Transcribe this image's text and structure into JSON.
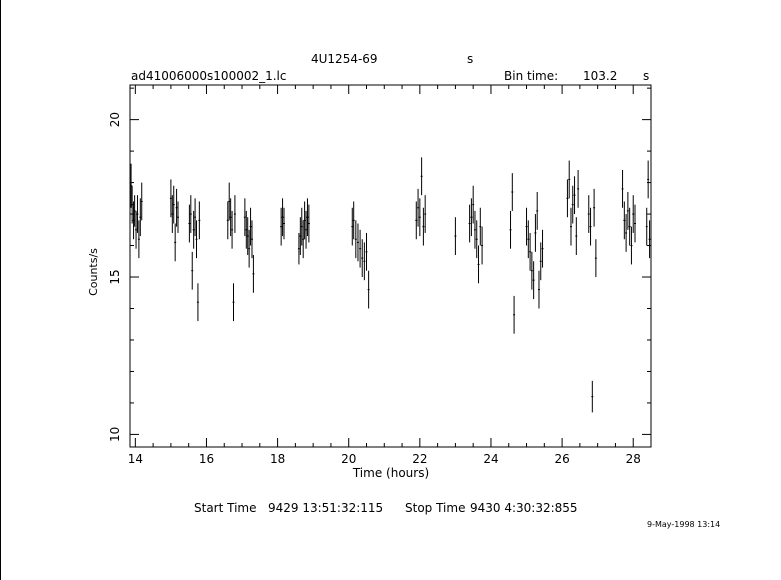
{
  "header": {
    "source": "4U1254-69",
    "source_suffix": "s",
    "file": "ad41006000s100002_1.lc",
    "bin_time_label": "Bin time:",
    "bin_time_value": "103.2",
    "bin_time_unit": "s"
  },
  "footer": {
    "start_label": "Start Time",
    "start_value": "9429  13:51:32:115",
    "stop_label": "Stop Time",
    "stop_value": "9430   4:30:32:855",
    "date_stamp": "9-May-1998 13:14"
  },
  "chart_data": {
    "type": "scatter",
    "title": "4U1254-69",
    "xlabel": "Time (hours)",
    "ylabel": "Counts/s",
    "xlim": [
      13.85,
      28.5
    ],
    "ylim": [
      9.6,
      21.1
    ],
    "xticks": [
      14,
      16,
      18,
      20,
      22,
      24,
      26,
      28
    ],
    "yticks": [
      10,
      15,
      20
    ],
    "grid": false,
    "error_bars": true,
    "points": [
      [
        13.88,
        17.9,
        0.7
      ],
      [
        13.91,
        17.3,
        0.6
      ],
      [
        13.95,
        16.8,
        0.6
      ],
      [
        13.98,
        17.1,
        0.5
      ],
      [
        14.02,
        16.5,
        0.6
      ],
      [
        14.06,
        17.0,
        0.6
      ],
      [
        14.1,
        16.2,
        0.6
      ],
      [
        14.14,
        16.9,
        0.6
      ],
      [
        14.18,
        17.4,
        0.6
      ],
      [
        15.0,
        17.5,
        0.6
      ],
      [
        15.04,
        17.0,
        0.6
      ],
      [
        15.08,
        17.3,
        0.6
      ],
      [
        15.12,
        16.1,
        0.6
      ],
      [
        15.16,
        17.2,
        0.6
      ],
      [
        15.2,
        16.9,
        0.5
      ],
      [
        15.52,
        16.7,
        0.6
      ],
      [
        15.56,
        17.0,
        0.6
      ],
      [
        15.6,
        15.2,
        0.6
      ],
      [
        15.64,
        16.5,
        0.6
      ],
      [
        15.68,
        16.9,
        0.6
      ],
      [
        15.72,
        16.2,
        0.6
      ],
      [
        15.76,
        14.2,
        0.6
      ],
      [
        15.8,
        16.8,
        0.6
      ],
      [
        16.6,
        16.8,
        0.6
      ],
      [
        16.64,
        17.4,
        0.6
      ],
      [
        16.68,
        16.9,
        0.6
      ],
      [
        16.72,
        16.5,
        0.6
      ],
      [
        16.76,
        14.2,
        0.6
      ],
      [
        16.8,
        17.0,
        0.6
      ],
      [
        17.08,
        16.9,
        0.6
      ],
      [
        17.12,
        16.5,
        0.6
      ],
      [
        17.16,
        16.3,
        0.6
      ],
      [
        17.2,
        15.9,
        0.6
      ],
      [
        17.24,
        16.6,
        0.6
      ],
      [
        17.28,
        16.2,
        0.6
      ],
      [
        17.32,
        15.1,
        0.6
      ],
      [
        18.1,
        16.6,
        0.6
      ],
      [
        18.14,
        16.9,
        0.6
      ],
      [
        18.18,
        16.7,
        0.5
      ],
      [
        18.6,
        15.9,
        0.5
      ],
      [
        18.64,
        16.3,
        0.6
      ],
      [
        18.68,
        16.6,
        0.6
      ],
      [
        18.72,
        16.2,
        0.6
      ],
      [
        18.76,
        16.8,
        0.6
      ],
      [
        18.8,
        16.5,
        0.6
      ],
      [
        18.84,
        16.9,
        0.6
      ],
      [
        18.88,
        16.7,
        0.6
      ],
      [
        20.1,
        16.6,
        0.6
      ],
      [
        20.14,
        16.8,
        0.6
      ],
      [
        20.2,
        16.2,
        0.6
      ],
      [
        20.26,
        16.1,
        0.6
      ],
      [
        20.32,
        15.9,
        0.6
      ],
      [
        20.38,
        15.6,
        0.6
      ],
      [
        20.44,
        15.5,
        0.6
      ],
      [
        20.5,
        15.8,
        0.6
      ],
      [
        20.56,
        14.6,
        0.6
      ],
      [
        21.9,
        16.8,
        0.6
      ],
      [
        21.95,
        17.2,
        0.6
      ],
      [
        22.0,
        16.9,
        0.6
      ],
      [
        22.05,
        18.2,
        0.6
      ],
      [
        22.1,
        16.6,
        0.6
      ],
      [
        22.15,
        17.0,
        0.6
      ],
      [
        23.0,
        16.3,
        0.6
      ],
      [
        23.4,
        16.7,
        0.6
      ],
      [
        23.45,
        16.9,
        0.6
      ],
      [
        23.5,
        17.3,
        0.6
      ],
      [
        23.55,
        16.5,
        0.6
      ],
      [
        23.6,
        16.2,
        0.6
      ],
      [
        23.65,
        15.4,
        0.6
      ],
      [
        23.7,
        16.6,
        0.6
      ],
      [
        23.75,
        16.0,
        0.6
      ],
      [
        24.55,
        16.5,
        0.6
      ],
      [
        24.6,
        17.7,
        0.6
      ],
      [
        24.65,
        13.8,
        0.6
      ],
      [
        25.0,
        16.6,
        0.6
      ],
      [
        25.05,
        16.2,
        0.6
      ],
      [
        25.1,
        15.8,
        0.6
      ],
      [
        25.15,
        15.2,
        0.6
      ],
      [
        25.2,
        14.9,
        0.6
      ],
      [
        25.25,
        16.4,
        0.6
      ],
      [
        25.3,
        17.1,
        0.6
      ],
      [
        25.35,
        14.6,
        0.6
      ],
      [
        25.4,
        15.5,
        0.6
      ],
      [
        25.45,
        15.9,
        0.6
      ],
      [
        26.15,
        17.5,
        0.6
      ],
      [
        26.2,
        18.1,
        0.6
      ],
      [
        26.25,
        16.6,
        0.6
      ],
      [
        26.3,
        17.3,
        0.6
      ],
      [
        26.35,
        17.6,
        0.6
      ],
      [
        26.4,
        16.3,
        0.6
      ],
      [
        26.45,
        17.8,
        0.6
      ],
      [
        26.75,
        17.0,
        0.6
      ],
      [
        26.8,
        16.6,
        0.6
      ],
      [
        26.85,
        11.2,
        0.5
      ],
      [
        26.9,
        17.2,
        0.6
      ],
      [
        26.95,
        15.6,
        0.6
      ],
      [
        27.7,
        17.8,
        0.6
      ],
      [
        27.75,
        16.8,
        0.6
      ],
      [
        27.8,
        16.4,
        0.6
      ],
      [
        27.85,
        17.1,
        0.6
      ],
      [
        27.9,
        16.6,
        0.6
      ],
      [
        27.95,
        16.0,
        0.6
      ],
      [
        28.0,
        17.0,
        0.6
      ],
      [
        28.05,
        16.7,
        0.6
      ],
      [
        28.38,
        16.6,
        0.6
      ],
      [
        28.42,
        18.1,
        0.6
      ],
      [
        28.46,
        16.2,
        0.6
      ]
    ]
  }
}
